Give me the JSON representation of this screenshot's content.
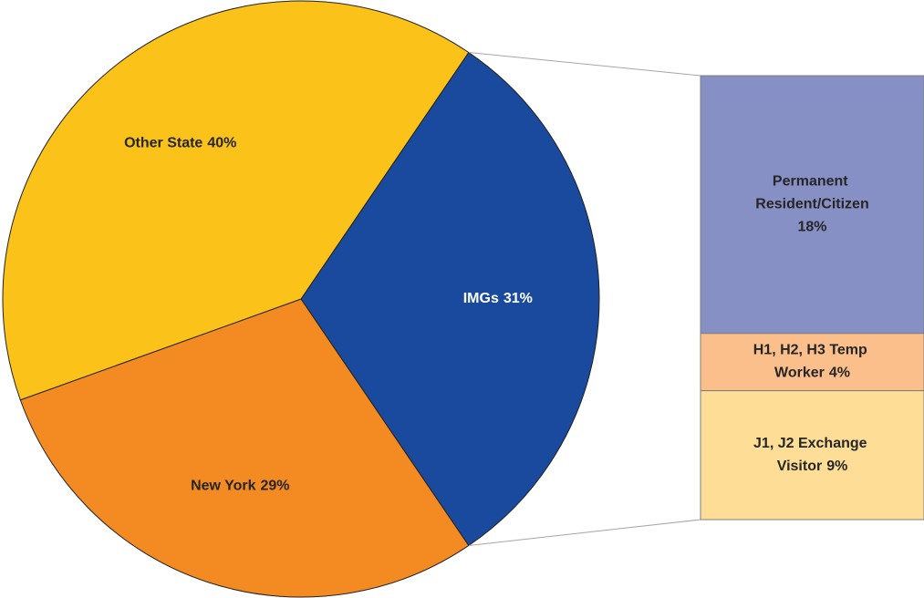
{
  "chart_data": {
    "type": "pie",
    "categories": [
      "IMGs",
      "New York",
      "Other State"
    ],
    "values": [
      31,
      29,
      40
    ],
    "value_labels": [
      "31%",
      "29%",
      "40%"
    ],
    "colors": [
      "#1a4a9e",
      "#f48a22",
      "#fbc219"
    ],
    "breakdown": {
      "categories": [
        "Permanent Resident/Citizen",
        "H1, H2, H3 Temp Worker",
        "J1, J2 Exchange Visitor"
      ],
      "values": [
        18,
        4,
        9
      ],
      "value_labels": [
        "18%",
        "4%",
        "9%"
      ],
      "colors": [
        "#8790c5",
        "#fbbf8c",
        "#fedd96"
      ]
    }
  }
}
